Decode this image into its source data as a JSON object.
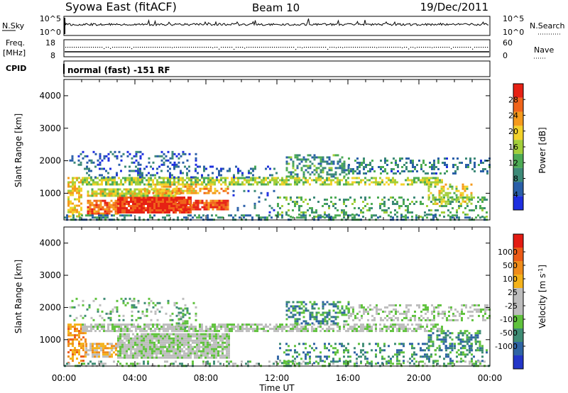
{
  "header": {
    "title": "Syowa East (fitACF)",
    "beam": "Beam 10",
    "date": "19/Dec/2011"
  },
  "top_panels": {
    "nsky_label": "N.Sky",
    "nsky_ticks": [
      "10^5",
      "10^0"
    ],
    "nsearch_label": "N.Search",
    "nsearch_ticks": [
      "10^5",
      "10^0"
    ],
    "freq_label": "Freq.",
    "freq_unit": "[MHz]",
    "freq_ticks": [
      "18",
      "8"
    ],
    "nave_label": "Nave",
    "nave_ticks": [
      "60",
      "0"
    ],
    "cpid_label": "CPID",
    "cpid_text": "normal (fast) -151 RF"
  },
  "colors": {
    "power": [
      "#1e2fe0",
      "#2a5fa8",
      "#3d8a78",
      "#4dab55",
      "#a3cf3a",
      "#f3d22a",
      "#f59a1c",
      "#f0641b",
      "#e62114"
    ],
    "velocity": [
      "#2336c8",
      "#2f64a4",
      "#3e8c74",
      "#5fc23c",
      "#bdbdbd",
      "#bdbdbd",
      "#f4b21a",
      "#f08c1a",
      "#ec5a16",
      "#e31b12"
    ]
  },
  "chart_data": [
    {
      "type": "heatmap",
      "name": "power",
      "ylabel": "Slant Range [km]",
      "ylim": [
        180,
        4500
      ],
      "yticks": [
        1000,
        2000,
        3000,
        4000
      ],
      "xticks": [
        "00:00",
        "04:00",
        "08:00",
        "12:00",
        "16:00",
        "20:00",
        "00:00"
      ],
      "colorbar_label": "Power [dB]",
      "colorbar_ticks": [
        "4",
        "8",
        "12",
        "16",
        "20",
        "24",
        "28"
      ],
      "cb_range": [
        0,
        32
      ],
      "regions": [
        {
          "t": [
            0.2,
            1.0
          ],
          "r": [
            300,
            1500
          ],
          "v": 20,
          "d": 0.6
        },
        {
          "t": [
            1.3,
            3.0
          ],
          "r": [
            400,
            800
          ],
          "v": 26,
          "d": 0.8
        },
        {
          "t": [
            3.0,
            7.2
          ],
          "r": [
            430,
            900
          ],
          "v": 30,
          "d": 0.95
        },
        {
          "t": [
            6.3,
            9.3
          ],
          "r": [
            500,
            800
          ],
          "v": 28,
          "d": 0.9
        },
        {
          "t": [
            1.3,
            6.5
          ],
          "r": [
            950,
            1150
          ],
          "v": 18,
          "d": 0.85
        },
        {
          "t": [
            4.5,
            9.3
          ],
          "r": [
            1000,
            1300
          ],
          "v": 22,
          "d": 0.6
        },
        {
          "t": [
            1.0,
            12.0
          ],
          "r": [
            1300,
            1500
          ],
          "v": 16,
          "d": 0.75
        },
        {
          "t": [
            12.0,
            21.3
          ],
          "r": [
            1300,
            1500
          ],
          "v": 16,
          "d": 0.6
        },
        {
          "t": [
            1.0,
            12.0
          ],
          "r": [
            1500,
            1850
          ],
          "v": 6,
          "d": 0.3
        },
        {
          "t": [
            0.3,
            7.5
          ],
          "r": [
            1850,
            2300
          ],
          "v": 5,
          "d": 0.25
        },
        {
          "t": [
            12.5,
            16.0
          ],
          "r": [
            1500,
            2200
          ],
          "v": 10,
          "d": 0.45
        },
        {
          "t": [
            16.0,
            24.0
          ],
          "r": [
            1600,
            2100
          ],
          "v": 8,
          "d": 0.35
        },
        {
          "t": [
            12.0,
            23.8
          ],
          "r": [
            300,
            900
          ],
          "v": 12,
          "d": 0.28
        },
        {
          "t": [
            20.5,
            23.0
          ],
          "r": [
            700,
            1300
          ],
          "v": 18,
          "d": 0.5
        },
        {
          "t": [
            0.0,
            24.0
          ],
          "r": [
            180,
            350
          ],
          "v": 9,
          "d": 0.4
        },
        {
          "t": [
            9.5,
            12.0
          ],
          "r": [
            400,
            1100
          ],
          "v": 6,
          "d": 0.12
        }
      ]
    },
    {
      "type": "heatmap",
      "name": "velocity",
      "ylabel": "Slant Range [km]",
      "ylim": [
        180,
        4500
      ],
      "yticks": [
        1000,
        2000,
        3000,
        4000
      ],
      "xticks": [
        "00:00",
        "04:00",
        "08:00",
        "12:00",
        "16:00",
        "20:00",
        "00:00"
      ],
      "xlabel": "Time UT",
      "colorbar_label": "Velocity [m s^-1]",
      "colorbar_ticks": [
        "1000",
        "500",
        "100",
        "25",
        "-25",
        "-100",
        "-500",
        "-1000"
      ],
      "cb_range": [
        0,
        10
      ],
      "regions": [
        {
          "t": [
            0.2,
            1.2
          ],
          "r": [
            300,
            1500
          ],
          "v": 7.5,
          "d": 0.6
        },
        {
          "t": [
            1.2,
            3.0
          ],
          "r": [
            500,
            900
          ],
          "v": 6.5,
          "d": 0.7
        },
        {
          "t": [
            3.0,
            9.3
          ],
          "r": [
            430,
            1200
          ],
          "v": 4.5,
          "d": 0.9
        },
        {
          "t": [
            1.0,
            12.0
          ],
          "r": [
            1300,
            1500
          ],
          "v": 4.5,
          "d": 0.75
        },
        {
          "t": [
            12.0,
            21.3
          ],
          "r": [
            1300,
            1500
          ],
          "v": 4.5,
          "d": 0.6
        },
        {
          "t": [
            0.3,
            7.5
          ],
          "r": [
            1600,
            2300
          ],
          "v": 3.5,
          "d": 0.2
        },
        {
          "t": [
            12.5,
            16.0
          ],
          "r": [
            1500,
            2200
          ],
          "v": 2.5,
          "d": 0.45
        },
        {
          "t": [
            16.0,
            24.0
          ],
          "r": [
            1600,
            2100
          ],
          "v": 4.5,
          "d": 0.4
        },
        {
          "t": [
            12.0,
            23.8
          ],
          "r": [
            300,
            900
          ],
          "v": 2.5,
          "d": 0.28
        },
        {
          "t": [
            20.5,
            23.5
          ],
          "r": [
            700,
            1300
          ],
          "v": 2.5,
          "d": 0.5
        },
        {
          "t": [
            0.0,
            24.0
          ],
          "r": [
            180,
            350
          ],
          "v": 3.5,
          "d": 0.3
        },
        {
          "t": [
            6.3,
            7.0
          ],
          "r": [
            1400,
            2000
          ],
          "v": 3.5,
          "d": 0.5
        }
      ]
    }
  ]
}
